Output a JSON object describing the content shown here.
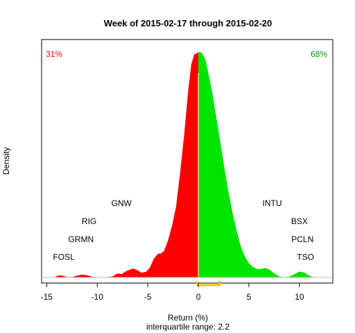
{
  "chart_data": {
    "type": "area",
    "title": "Week of 2015-02-17 through 2015-02-20",
    "xlabel": "Return (%)",
    "ylabel": "Density",
    "subtitle": "interquartile range: 2.2",
    "xlim": [
      -15.5,
      13.3
    ],
    "ylim": [
      -0.005,
      0.21
    ],
    "x_ticks": [
      -15,
      -10,
      -5,
      0,
      5,
      10
    ],
    "x_tick_labels": [
      "-15",
      "-10",
      "-5",
      "0",
      "5",
      "10"
    ],
    "neg_pct_label": "31%",
    "pos_pct_label": "68%",
    "neg_color": "#ff0000",
    "pos_color": "#00e400",
    "iqr_color": "#ffc000",
    "iqr": [
      -0.1,
      2.1
    ],
    "split_x": 0,
    "density": {
      "x": [
        -14.8,
        -14.2,
        -13.8,
        -13.4,
        -13.0,
        -12.5,
        -12.0,
        -11.5,
        -11.0,
        -10.5,
        -10.0,
        -9.5,
        -9.0,
        -8.5,
        -8.0,
        -7.6,
        -7.2,
        -6.8,
        -6.4,
        -6.0,
        -5.6,
        -5.2,
        -4.8,
        -4.4,
        -4.0,
        -3.7,
        -3.4,
        -3.0,
        -2.6,
        -2.2,
        -1.8,
        -1.4,
        -1.0,
        -0.7,
        -0.4,
        -0.1,
        0.0,
        0.2,
        0.4,
        0.7,
        1.0,
        1.4,
        1.8,
        2.2,
        2.6,
        3.0,
        3.4,
        3.8,
        4.2,
        4.6,
        5.0,
        5.4,
        5.8,
        6.2,
        6.6,
        7.0,
        7.5,
        8.0,
        8.5,
        9.0,
        9.5,
        10.0,
        10.5,
        11.0,
        11.5
      ],
      "y": [
        0.0,
        0.0002,
        0.0018,
        0.0014,
        0.0004,
        0.0003,
        0.0015,
        0.0024,
        0.0019,
        0.0006,
        0.0,
        0.0,
        0.0002,
        0.0008,
        0.0035,
        0.0028,
        0.0052,
        0.0068,
        0.0078,
        0.0062,
        0.0042,
        0.0048,
        0.0085,
        0.0165,
        0.0208,
        0.0212,
        0.0232,
        0.0325,
        0.0455,
        0.0625,
        0.0925,
        0.126,
        0.165,
        0.188,
        0.197,
        0.198,
        0.199,
        0.199,
        0.1975,
        0.1925,
        0.18,
        0.162,
        0.14,
        0.118,
        0.0955,
        0.0745,
        0.0565,
        0.0405,
        0.0275,
        0.0185,
        0.0125,
        0.0092,
        0.0075,
        0.0074,
        0.0082,
        0.0072,
        0.0035,
        0.0008,
        0.0002,
        0.0006,
        0.0028,
        0.0052,
        0.0042,
        0.0013,
        0.0
      ]
    },
    "stock_labels": [
      {
        "text": "FOSL",
        "x": -13.3,
        "y": 0.0155
      },
      {
        "text": "GRMN",
        "x": -11.6,
        "y": 0.031
      },
      {
        "text": "RIG",
        "x": -10.8,
        "y": 0.047
      },
      {
        "text": "GNW",
        "x": -7.6,
        "y": 0.063
      },
      {
        "text": "INTU",
        "x": 7.3,
        "y": 0.063
      },
      {
        "text": "BSX",
        "x": 10.0,
        "y": 0.047
      },
      {
        "text": "PCLN",
        "x": 10.3,
        "y": 0.031
      },
      {
        "text": "TSO",
        "x": 10.6,
        "y": 0.0155
      }
    ]
  }
}
